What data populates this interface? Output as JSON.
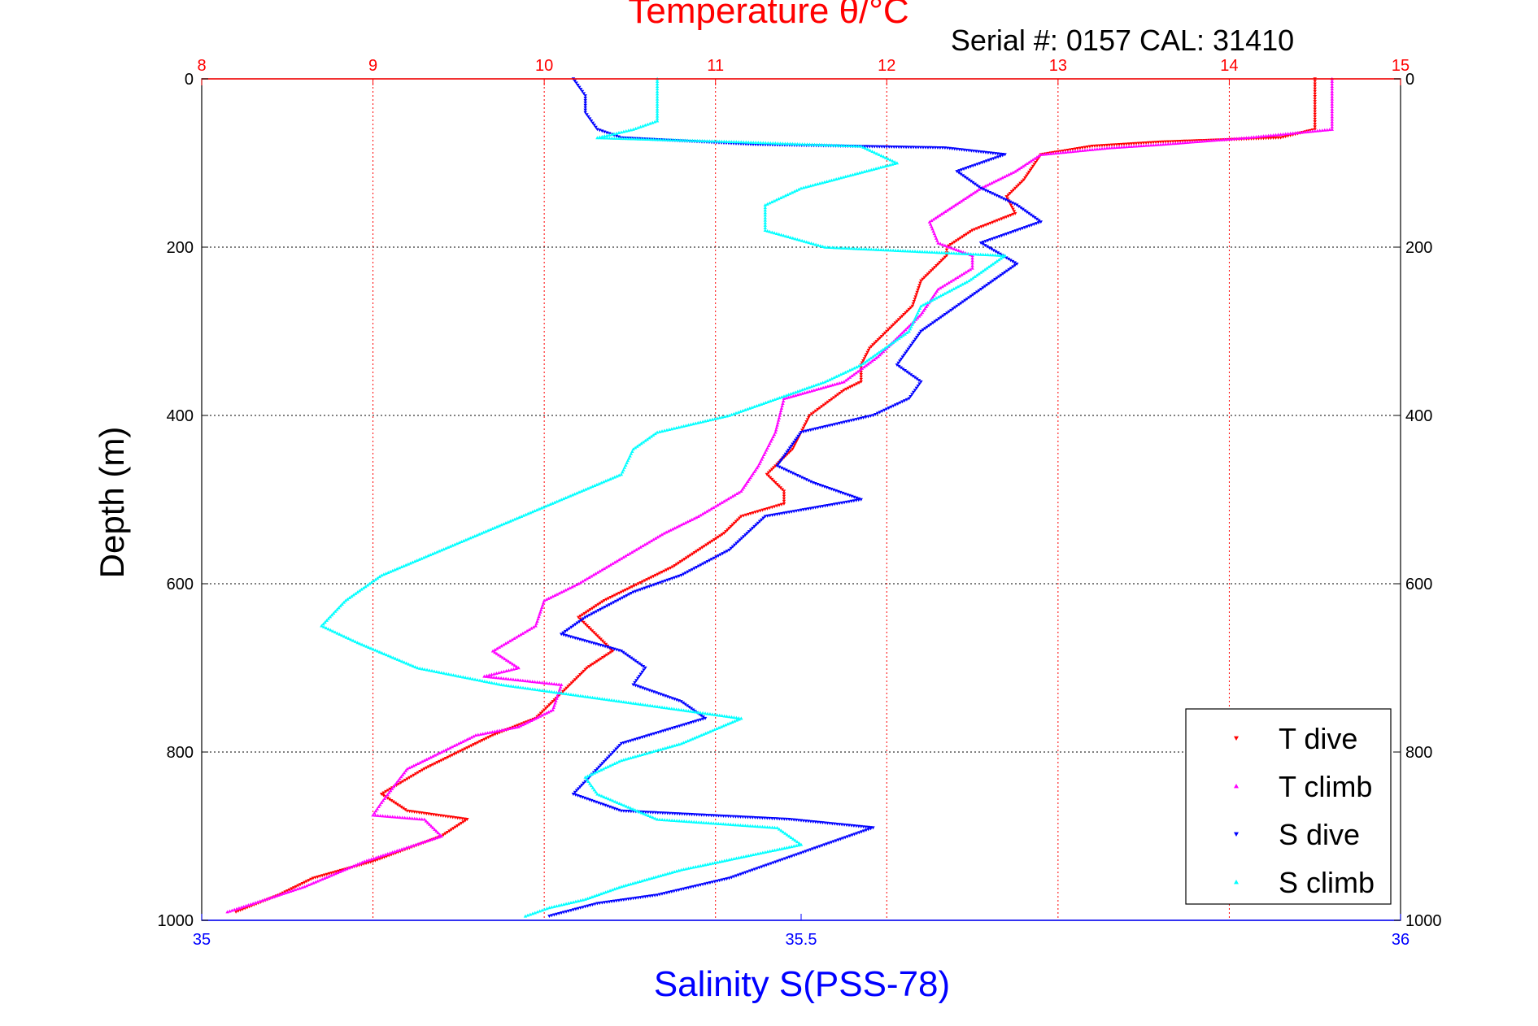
{
  "chart_data": {
    "type": "scatter",
    "title": "Temperature θ/°C",
    "subtitle": "Serial #: 0157  CAL: 31410",
    "ylabel": "Depth (m)",
    "xlabel": "Salinity S(PSS-78)",
    "y_axis": {
      "min": 0,
      "max": 1000,
      "reversed": true,
      "ticks": [
        0,
        200,
        400,
        600,
        800,
        1000
      ]
    },
    "temperature_axis": {
      "position": "top",
      "min": 8,
      "max": 15,
      "ticks": [
        8,
        9,
        10,
        11,
        12,
        13,
        14,
        15
      ]
    },
    "salinity_axis": {
      "position": "bottom",
      "min": 35,
      "max": 36,
      "ticks": [
        35,
        35.5,
        36
      ],
      "tick_labels": [
        "35",
        "35.5",
        "36"
      ]
    },
    "grid": true,
    "legend_position": "bottom-right",
    "series": [
      {
        "name": "T dive",
        "variable": "temperature",
        "marker": "triangle-down",
        "color": "#ff0000",
        "points": [
          [
            14.5,
            0
          ],
          [
            14.5,
            30
          ],
          [
            14.5,
            60
          ],
          [
            14.3,
            70
          ],
          [
            13.6,
            75
          ],
          [
            13.2,
            80
          ],
          [
            12.9,
            90
          ],
          [
            12.8,
            120
          ],
          [
            12.7,
            140
          ],
          [
            12.75,
            160
          ],
          [
            12.5,
            180
          ],
          [
            12.35,
            200
          ],
          [
            12.35,
            210
          ],
          [
            12.2,
            240
          ],
          [
            12.15,
            270
          ],
          [
            12.0,
            300
          ],
          [
            11.9,
            320
          ],
          [
            11.85,
            340
          ],
          [
            11.85,
            360
          ],
          [
            11.75,
            370
          ],
          [
            11.55,
            400
          ],
          [
            11.5,
            420
          ],
          [
            11.45,
            440
          ],
          [
            11.35,
            460
          ],
          [
            11.3,
            470
          ],
          [
            11.4,
            490
          ],
          [
            11.4,
            505
          ],
          [
            11.15,
            520
          ],
          [
            11.05,
            540
          ],
          [
            10.9,
            560
          ],
          [
            10.75,
            580
          ],
          [
            10.55,
            600
          ],
          [
            10.35,
            620
          ],
          [
            10.2,
            640
          ],
          [
            10.3,
            660
          ],
          [
            10.4,
            680
          ],
          [
            10.25,
            700
          ],
          [
            10.15,
            720
          ],
          [
            10.05,
            740
          ],
          [
            9.95,
            760
          ],
          [
            9.7,
            780
          ],
          [
            9.5,
            800
          ],
          [
            9.3,
            820
          ],
          [
            9.05,
            850
          ],
          [
            9.2,
            870
          ],
          [
            9.55,
            880
          ],
          [
            9.4,
            900
          ],
          [
            9.0,
            930
          ],
          [
            8.65,
            950
          ],
          [
            8.45,
            970
          ],
          [
            8.2,
            990
          ]
        ]
      },
      {
        "name": "T climb",
        "variable": "temperature",
        "marker": "triangle-up",
        "color": "#ff00ff",
        "points": [
          [
            14.6,
            0
          ],
          [
            14.6,
            30
          ],
          [
            14.6,
            60
          ],
          [
            14.1,
            70
          ],
          [
            13.6,
            78
          ],
          [
            13.3,
            82
          ],
          [
            12.9,
            90
          ],
          [
            12.75,
            110
          ],
          [
            12.55,
            130
          ],
          [
            12.4,
            150
          ],
          [
            12.25,
            170
          ],
          [
            12.3,
            195
          ],
          [
            12.5,
            210
          ],
          [
            12.5,
            225
          ],
          [
            12.3,
            250
          ],
          [
            12.2,
            280
          ],
          [
            12.1,
            300
          ],
          [
            11.95,
            330
          ],
          [
            11.75,
            360
          ],
          [
            11.4,
            380
          ],
          [
            11.35,
            420
          ],
          [
            11.25,
            460
          ],
          [
            11.15,
            490
          ],
          [
            10.9,
            520
          ],
          [
            10.7,
            540
          ],
          [
            10.45,
            570
          ],
          [
            10.2,
            600
          ],
          [
            10.0,
            620
          ],
          [
            9.95,
            650
          ],
          [
            9.7,
            680
          ],
          [
            9.85,
            700
          ],
          [
            9.65,
            710
          ],
          [
            10.1,
            720
          ],
          [
            10.05,
            750
          ],
          [
            9.85,
            770
          ],
          [
            9.6,
            780
          ],
          [
            9.4,
            800
          ],
          [
            9.2,
            820
          ],
          [
            9.05,
            860
          ],
          [
            9.0,
            875
          ],
          [
            9.3,
            880
          ],
          [
            9.4,
            900
          ],
          [
            8.95,
            930
          ],
          [
            8.6,
            960
          ],
          [
            8.3,
            980
          ],
          [
            8.15,
            990
          ]
        ]
      },
      {
        "name": "S dive",
        "variable": "salinity",
        "marker": "triangle-down",
        "color": "#0000ff",
        "points": [
          [
            35.31,
            0
          ],
          [
            35.32,
            20
          ],
          [
            35.32,
            40
          ],
          [
            35.33,
            60
          ],
          [
            35.35,
            70
          ],
          [
            35.46,
            78
          ],
          [
            35.62,
            82
          ],
          [
            35.67,
            90
          ],
          [
            35.63,
            110
          ],
          [
            35.65,
            130
          ],
          [
            35.68,
            150
          ],
          [
            35.7,
            170
          ],
          [
            35.65,
            195
          ],
          [
            35.68,
            220
          ],
          [
            35.64,
            260
          ],
          [
            35.6,
            300
          ],
          [
            35.58,
            340
          ],
          [
            35.6,
            360
          ],
          [
            35.59,
            380
          ],
          [
            35.56,
            400
          ],
          [
            35.5,
            420
          ],
          [
            35.48,
            460
          ],
          [
            35.51,
            480
          ],
          [
            35.55,
            500
          ],
          [
            35.47,
            520
          ],
          [
            35.44,
            560
          ],
          [
            35.4,
            590
          ],
          [
            35.36,
            610
          ],
          [
            35.32,
            640
          ],
          [
            35.3,
            660
          ],
          [
            35.35,
            680
          ],
          [
            35.37,
            700
          ],
          [
            35.36,
            720
          ],
          [
            35.4,
            740
          ],
          [
            35.42,
            760
          ],
          [
            35.35,
            790
          ],
          [
            35.33,
            820
          ],
          [
            35.31,
            850
          ],
          [
            35.35,
            870
          ],
          [
            35.49,
            880
          ],
          [
            35.56,
            890
          ],
          [
            35.5,
            920
          ],
          [
            35.44,
            950
          ],
          [
            35.38,
            970
          ],
          [
            35.33,
            980
          ],
          [
            35.29,
            995
          ]
        ]
      },
      {
        "name": "S climb",
        "variable": "salinity",
        "marker": "triangle-up",
        "color": "#00ffff",
        "points": [
          [
            35.38,
            0
          ],
          [
            35.38,
            30
          ],
          [
            35.38,
            50
          ],
          [
            35.36,
            60
          ],
          [
            35.33,
            70
          ],
          [
            35.45,
            75
          ],
          [
            35.55,
            80
          ],
          [
            35.58,
            100
          ],
          [
            35.5,
            130
          ],
          [
            35.47,
            150
          ],
          [
            35.47,
            180
          ],
          [
            35.52,
            200
          ],
          [
            35.67,
            210
          ],
          [
            35.64,
            240
          ],
          [
            35.6,
            270
          ],
          [
            35.59,
            300
          ],
          [
            35.55,
            340
          ],
          [
            35.52,
            360
          ],
          [
            35.48,
            380
          ],
          [
            35.44,
            400
          ],
          [
            35.38,
            420
          ],
          [
            35.36,
            440
          ],
          [
            35.35,
            470
          ],
          [
            35.3,
            500
          ],
          [
            35.25,
            530
          ],
          [
            35.2,
            560
          ],
          [
            35.15,
            590
          ],
          [
            35.12,
            620
          ],
          [
            35.1,
            650
          ],
          [
            35.13,
            670
          ],
          [
            35.18,
            700
          ],
          [
            35.25,
            720
          ],
          [
            35.35,
            740
          ],
          [
            35.45,
            760
          ],
          [
            35.4,
            790
          ],
          [
            35.35,
            810
          ],
          [
            35.32,
            830
          ],
          [
            35.33,
            850
          ],
          [
            35.38,
            880
          ],
          [
            35.48,
            890
          ],
          [
            35.5,
            910
          ],
          [
            35.4,
            940
          ],
          [
            35.35,
            960
          ],
          [
            35.32,
            975
          ],
          [
            35.29,
            985
          ],
          [
            35.27,
            995
          ]
        ]
      }
    ]
  }
}
